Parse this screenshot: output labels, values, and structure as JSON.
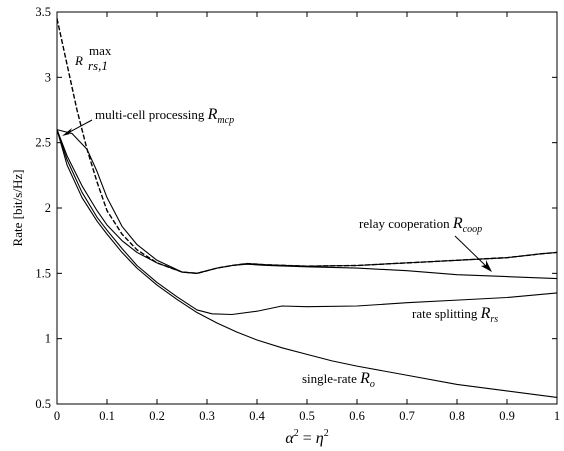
{
  "chart_data": {
    "type": "line",
    "title": "",
    "xlabel": {
      "base": "α",
      "sup": "2",
      "eq": " = ",
      "base2": "η",
      "sup2": "2"
    },
    "ylabel": "Rate [bit/s/Hz]",
    "xlim": [
      0,
      1
    ],
    "ylim": [
      0.5,
      3.5
    ],
    "xticks": [
      "0",
      "0.1",
      "0.2",
      "0.3",
      "0.4",
      "0.5",
      "0.6",
      "0.7",
      "0.8",
      "0.9",
      "1"
    ],
    "yticks": [
      "0.5",
      "1",
      "1.5",
      "2",
      "2.5",
      "3",
      "3.5"
    ],
    "grid": false,
    "legend": "none",
    "series": [
      {
        "id": "r_rs1_max",
        "dashed": true,
        "points": [
          [
            0,
            3.45
          ],
          [
            0.02,
            3.1
          ],
          [
            0.04,
            2.75
          ],
          [
            0.06,
            2.45
          ],
          [
            0.08,
            2.2
          ],
          [
            0.1,
            1.98
          ],
          [
            0.13,
            1.8
          ],
          [
            0.16,
            1.68
          ],
          [
            0.2,
            1.58
          ],
          [
            0.25,
            1.51
          ],
          [
            0.28,
            1.5
          ],
          [
            0.32,
            1.54
          ],
          [
            0.35,
            1.56
          ],
          [
            0.38,
            1.575
          ],
          [
            0.42,
            1.565
          ],
          [
            0.5,
            1.555
          ],
          [
            0.6,
            1.56
          ],
          [
            0.7,
            1.58
          ],
          [
            0.8,
            1.6
          ],
          [
            0.9,
            1.62
          ],
          [
            0.97,
            1.65
          ],
          [
            1.0,
            1.66
          ]
        ]
      },
      {
        "id": "r_mcp",
        "dashed": false,
        "points": [
          [
            0,
            2.6
          ],
          [
            0.03,
            2.57
          ],
          [
            0.06,
            2.45
          ],
          [
            0.08,
            2.28
          ],
          [
            0.1,
            2.08
          ],
          [
            0.13,
            1.86
          ],
          [
            0.16,
            1.72
          ],
          [
            0.2,
            1.6
          ],
          [
            0.25,
            1.51
          ],
          [
            0.28,
            1.5
          ],
          [
            0.32,
            1.54
          ],
          [
            0.35,
            1.56
          ],
          [
            0.38,
            1.575
          ],
          [
            0.42,
            1.565
          ],
          [
            0.5,
            1.555
          ],
          [
            0.6,
            1.56
          ],
          [
            0.7,
            1.58
          ],
          [
            0.8,
            1.6
          ],
          [
            0.9,
            1.62
          ],
          [
            0.97,
            1.65
          ],
          [
            1.0,
            1.66
          ]
        ]
      },
      {
        "id": "r_coop",
        "dashed": false,
        "points": [
          [
            0,
            2.6
          ],
          [
            0.02,
            2.4
          ],
          [
            0.05,
            2.17
          ],
          [
            0.08,
            1.98
          ],
          [
            0.1,
            1.87
          ],
          [
            0.13,
            1.75
          ],
          [
            0.16,
            1.66
          ],
          [
            0.2,
            1.58
          ],
          [
            0.25,
            1.51
          ],
          [
            0.28,
            1.5
          ],
          [
            0.32,
            1.54
          ],
          [
            0.35,
            1.56
          ],
          [
            0.38,
            1.57
          ],
          [
            0.42,
            1.56
          ],
          [
            0.5,
            1.55
          ],
          [
            0.6,
            1.54
          ],
          [
            0.7,
            1.52
          ],
          [
            0.8,
            1.49
          ],
          [
            0.9,
            1.475
          ],
          [
            1.0,
            1.46
          ]
        ]
      },
      {
        "id": "r_rs",
        "dashed": false,
        "points": [
          [
            0,
            2.6
          ],
          [
            0.02,
            2.37
          ],
          [
            0.05,
            2.12
          ],
          [
            0.08,
            1.93
          ],
          [
            0.1,
            1.83
          ],
          [
            0.13,
            1.69
          ],
          [
            0.16,
            1.56
          ],
          [
            0.2,
            1.43
          ],
          [
            0.24,
            1.32
          ],
          [
            0.28,
            1.22
          ],
          [
            0.31,
            1.19
          ],
          [
            0.35,
            1.185
          ],
          [
            0.4,
            1.21
          ],
          [
            0.45,
            1.25
          ],
          [
            0.5,
            1.245
          ],
          [
            0.6,
            1.25
          ],
          [
            0.7,
            1.275
          ],
          [
            0.8,
            1.295
          ],
          [
            0.9,
            1.315
          ],
          [
            1.0,
            1.35
          ]
        ]
      },
      {
        "id": "r_o",
        "dashed": false,
        "points": [
          [
            0,
            2.6
          ],
          [
            0.02,
            2.33
          ],
          [
            0.05,
            2.08
          ],
          [
            0.08,
            1.9
          ],
          [
            0.1,
            1.8
          ],
          [
            0.13,
            1.66
          ],
          [
            0.16,
            1.54
          ],
          [
            0.2,
            1.41
          ],
          [
            0.24,
            1.3
          ],
          [
            0.28,
            1.2
          ],
          [
            0.32,
            1.12
          ],
          [
            0.36,
            1.05
          ],
          [
            0.4,
            0.99
          ],
          [
            0.45,
            0.93
          ],
          [
            0.5,
            0.88
          ],
          [
            0.55,
            0.83
          ],
          [
            0.6,
            0.79
          ],
          [
            0.7,
            0.72
          ],
          [
            0.8,
            0.65
          ],
          [
            0.9,
            0.6
          ],
          [
            1.0,
            0.55
          ]
        ]
      }
    ],
    "annotations": {
      "r_rs1_max": {
        "base": "R",
        "sup": "max",
        "sub": "rs,1"
      },
      "r_mcp": {
        "text": "multi-cell processing ",
        "base": "R",
        "sub": "mcp"
      },
      "r_coop": {
        "text": "relay cooperation ",
        "base": "R",
        "sub": "coop"
      },
      "r_rs": {
        "text": "rate splitting ",
        "base": "R",
        "sub": "rs"
      },
      "r_o": {
        "text": "single-rate ",
        "base": "R",
        "sub": "o"
      }
    }
  }
}
